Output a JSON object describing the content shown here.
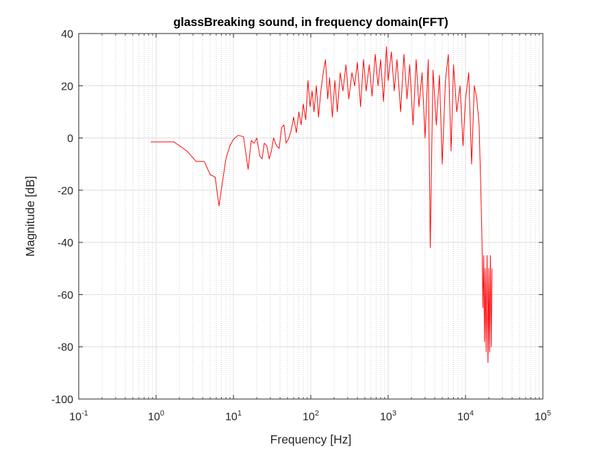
{
  "chart_data": {
    "type": "line",
    "title": "glassBreaking sound, in frequency domain(FFT)",
    "xlabel": "Frequency [Hz]",
    "ylabel": "Magnitude [dB]",
    "xscale": "log",
    "xlim": [
      0.1,
      100000
    ],
    "ylim": [
      -100,
      40
    ],
    "xticks": [
      {
        "base": "10",
        "exp": "-1"
      },
      {
        "base": "10",
        "exp": "0"
      },
      {
        "base": "10",
        "exp": "1"
      },
      {
        "base": "10",
        "exp": "2"
      },
      {
        "base": "10",
        "exp": "3"
      },
      {
        "base": "10",
        "exp": "4"
      },
      {
        "base": "10",
        "exp": "5"
      }
    ],
    "yticks": [
      "-100",
      "-80",
      "-60",
      "-40",
      "-20",
      "0",
      "20",
      "40"
    ],
    "grid": true,
    "minor_grid": true,
    "series": [
      {
        "color": "#ff0000",
        "x": [
          0.85,
          1.0,
          1.7,
          2.5,
          3.3,
          4.2,
          5.0,
          5.8,
          6.5,
          7.2,
          8.0,
          9.0,
          10.0,
          11.5,
          13.5,
          15.5,
          17.0,
          18.5,
          20.0,
          22.0,
          23.5,
          25.0,
          27.0,
          29.0,
          31.0,
          33.0,
          36.0,
          39.0,
          42.0,
          45.0,
          48.0,
          52.0,
          56.0,
          60.0,
          65.0,
          70.0,
          75.0,
          80.0,
          86.0,
          92.0,
          98.0,
          104.0,
          110.0,
          118.0,
          126.0,
          135.0,
          145.0,
          155.0,
          165.0,
          175.0,
          190.0,
          205.0,
          220.0,
          240.0,
          260.0,
          285.0,
          310.0,
          340.0,
          370.0,
          400.0,
          440.0,
          480.0,
          520.0,
          570.0,
          620.0,
          680.0,
          740.0,
          800.0,
          870.0,
          950.0,
          1000.0,
          1100.0,
          1200.0,
          1300.0,
          1450.0,
          1600.0,
          1750.0,
          1900.0,
          2100.0,
          2300.0,
          2500.0,
          2750.0,
          3000.0,
          3300.0,
          3500.0,
          3800.0,
          4200.0,
          4600.0,
          5000.0,
          5500.0,
          6000.0,
          6500.0,
          7000.0,
          7700.0,
          8500.0,
          9300.0,
          10000.0,
          11000.0,
          12000.0,
          13000.0,
          14000.0,
          15000.0,
          15800.0,
          16300.0,
          16800.0,
          17200.0,
          17600.0,
          18000.0,
          18500.0,
          19000.0,
          19500.0,
          20000.0,
          20500.0,
          21000.0,
          21500.0,
          22000.0
        ],
        "y": [
          -1.5,
          -1.5,
          -1.5,
          -5,
          -9,
          -9,
          -14,
          -15,
          -26,
          -17,
          -8,
          -3,
          -0.5,
          1,
          0.5,
          -12,
          -1,
          -2,
          0,
          -7,
          -8,
          -2,
          -3,
          -8,
          -5,
          0,
          -3,
          -4,
          4,
          5,
          -2,
          0,
          3,
          8,
          2,
          10,
          5,
          13,
          7,
          22,
          12,
          18,
          10,
          20,
          8,
          18,
          25,
          30,
          15,
          23,
          8,
          22,
          10,
          25,
          18,
          28,
          15,
          25,
          20,
          29,
          12,
          30,
          18,
          28,
          16,
          32,
          20,
          30,
          14,
          35,
          22,
          33,
          18,
          30,
          10,
          32,
          15,
          28,
          5,
          30,
          12,
          25,
          0,
          30,
          -42,
          26,
          5,
          24,
          -10,
          22,
          32,
          -5,
          28,
          10,
          20,
          -3,
          15,
          25,
          -10,
          20,
          15,
          5,
          -20,
          -38,
          -65,
          -45,
          -78,
          -50,
          -82,
          -45,
          -86,
          -50,
          -82,
          -45,
          -80,
          -50
        ]
      }
    ]
  }
}
